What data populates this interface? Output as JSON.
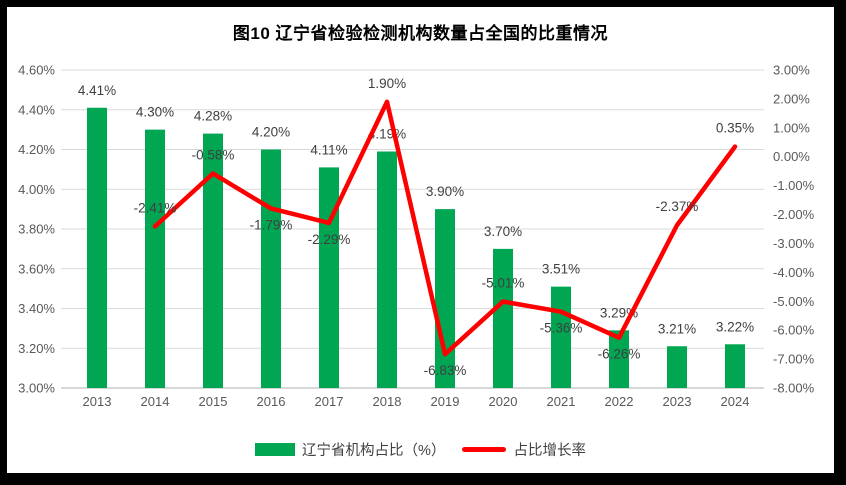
{
  "title": "图10 辽宁省检验检测机构数量占全国的比重情况",
  "legend": {
    "bar_label": "辽宁省机构占比（%）",
    "line_label": "占比增长率"
  },
  "colors": {
    "bar": "#00A651",
    "line": "#FF0000",
    "grid": "#D9D9D9",
    "axis_line": "#BFBFBF",
    "axis_text": "#595959",
    "data_label_text": "#404040",
    "title_text": "#000000",
    "frame": "#000000",
    "panel": "#FFFFFF"
  },
  "chart_data": {
    "type": "bar+line combo",
    "title": "图10 辽宁省检验检测机构数量占全国的比重情况",
    "categories": [
      "2013",
      "2014",
      "2015",
      "2016",
      "2017",
      "2018",
      "2019",
      "2020",
      "2021",
      "2022",
      "2023",
      "2024"
    ],
    "series": [
      {
        "name": "辽宁省机构占比（%）",
        "type": "bar",
        "axis": "left",
        "color": "#00A651",
        "values": [
          4.41,
          4.3,
          4.28,
          4.2,
          4.11,
          4.19,
          3.9,
          3.7,
          3.51,
          3.29,
          3.21,
          3.22
        ],
        "labels": [
          "4.41%",
          "4.30%",
          "4.28%",
          "4.20%",
          "4.11%",
          "4.19%",
          "3.90%",
          "3.70%",
          "3.51%",
          "3.29%",
          "3.21%",
          "3.22%"
        ]
      },
      {
        "name": "占比增长率",
        "type": "line",
        "axis": "right",
        "color": "#FF0000",
        "values": [
          null,
          -2.41,
          -0.58,
          -1.79,
          -2.29,
          1.9,
          -6.83,
          -5.01,
          -5.36,
          -6.26,
          -2.37,
          0.35
        ],
        "labels": [
          null,
          "-2.41%",
          "-0.58%",
          "-1.79%",
          "-2.29%",
          "1.90%",
          "-6.83%",
          "-5.01%",
          "-5.36%",
          "-6.26%",
          "-2.37%",
          "0.35%"
        ],
        "label_positions": [
          null,
          "above",
          "above",
          "below",
          "below",
          "above",
          "below",
          "above",
          "below",
          "below",
          "above",
          "above"
        ]
      }
    ],
    "left_axis": {
      "min": 3.0,
      "max": 4.6,
      "step": 0.2,
      "tick_labels": [
        "3.00%",
        "3.20%",
        "3.40%",
        "3.60%",
        "3.80%",
        "4.00%",
        "4.20%",
        "4.40%",
        "4.60%"
      ]
    },
    "right_axis": {
      "min": -8.0,
      "max": 3.0,
      "step": 1.0,
      "tick_labels": [
        "-8.00%",
        "-7.00%",
        "-6.00%",
        "-5.00%",
        "-4.00%",
        "-3.00%",
        "-2.00%",
        "-1.00%",
        "0.00%",
        "1.00%",
        "2.00%",
        "3.00%"
      ]
    },
    "grid": "horizontal",
    "legend_position": "bottom"
  }
}
